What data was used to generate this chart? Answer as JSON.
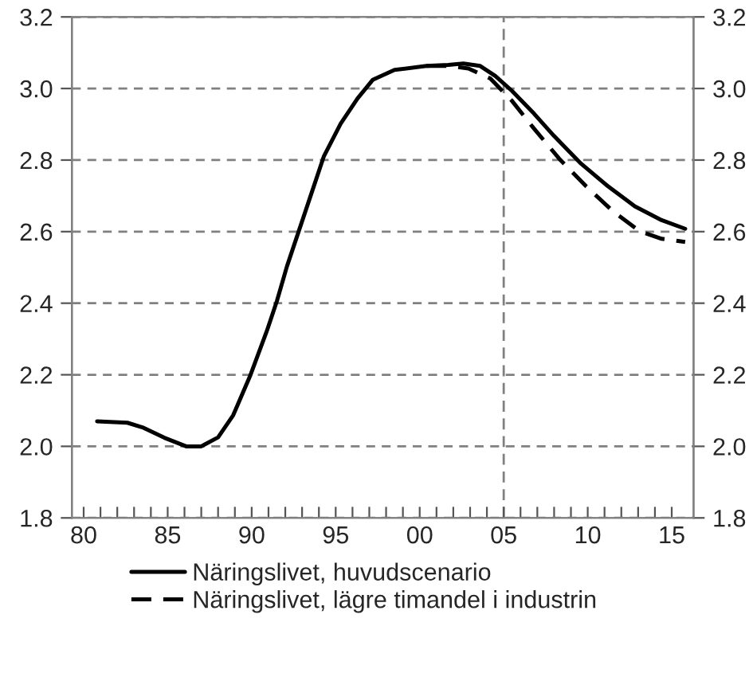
{
  "chart_data": {
    "type": "line",
    "series": [
      {
        "name": "Näringslivet, huvudscenario",
        "color": "#000000",
        "line_style": "solid",
        "x": [
          1980.8,
          1982.6,
          1983.5,
          1984.8,
          1986.1,
          1987.0,
          1988.0,
          1988.9,
          1989.9,
          1990.9,
          1991.5,
          1992.1,
          1992.8,
          1993.4,
          1994.3,
          1995.3,
          1996.3,
          1997.2,
          1998.5,
          2000.4,
          2001.7,
          2002.6,
          2003.6,
          2004.5,
          2005.5,
          2006.8,
          2008.0,
          2009.6,
          2011.2,
          2012.8,
          2014.4,
          2015.8
        ],
        "values": [
          2.07,
          2.066,
          2.053,
          2.024,
          2.0,
          2.0,
          2.025,
          2.087,
          2.196,
          2.322,
          2.406,
          2.503,
          2.601,
          2.685,
          2.811,
          2.902,
          2.972,
          3.024,
          3.052,
          3.063,
          3.066,
          3.07,
          3.063,
          3.035,
          2.993,
          2.93,
          2.867,
          2.79,
          2.727,
          2.671,
          2.632,
          2.608
        ]
      },
      {
        "name": "Näringslivet, lägre timandel i industrin",
        "color": "#000000",
        "line_style": "dashed",
        "x": [
          2000.4,
          2001.7,
          2002.9,
          2004.2,
          2005.5,
          2006.8,
          2008.3,
          2009.9,
          2011.5,
          2013.1,
          2014.4,
          2015.8
        ],
        "values": [
          3.063,
          3.063,
          3.056,
          3.028,
          2.965,
          2.888,
          2.804,
          2.727,
          2.657,
          2.601,
          2.58,
          2.571
        ]
      }
    ],
    "xlim": [
      1979.3,
      2016.3
    ],
    "xticks": [
      {
        "value": 1980,
        "label": "80"
      },
      {
        "value": 1981,
        "label": null
      },
      {
        "value": 1982,
        "label": null
      },
      {
        "value": 1983,
        "label": null
      },
      {
        "value": 1984,
        "label": null
      },
      {
        "value": 1985,
        "label": "85"
      },
      {
        "value": 1986,
        "label": null
      },
      {
        "value": 1987,
        "label": null
      },
      {
        "value": 1988,
        "label": null
      },
      {
        "value": 1989,
        "label": null
      },
      {
        "value": 1990,
        "label": "90"
      },
      {
        "value": 1991,
        "label": null
      },
      {
        "value": 1992,
        "label": null
      },
      {
        "value": 1993,
        "label": null
      },
      {
        "value": 1994,
        "label": null
      },
      {
        "value": 1995,
        "label": "95"
      },
      {
        "value": 1996,
        "label": null
      },
      {
        "value": 1997,
        "label": null
      },
      {
        "value": 1998,
        "label": null
      },
      {
        "value": 1999,
        "label": null
      },
      {
        "value": 2000,
        "label": "00"
      },
      {
        "value": 2001,
        "label": null
      },
      {
        "value": 2002,
        "label": null
      },
      {
        "value": 2003,
        "label": null
      },
      {
        "value": 2004,
        "label": null
      },
      {
        "value": 2005,
        "label": "05"
      },
      {
        "value": 2006,
        "label": null
      },
      {
        "value": 2007,
        "label": null
      },
      {
        "value": 2008,
        "label": null
      },
      {
        "value": 2009,
        "label": null
      },
      {
        "value": 2010,
        "label": "10"
      },
      {
        "value": 2011,
        "label": null
      },
      {
        "value": 2012,
        "label": null
      },
      {
        "value": 2013,
        "label": null
      },
      {
        "value": 2014,
        "label": null
      },
      {
        "value": 2015,
        "label": "15"
      }
    ],
    "ylim": [
      1.8,
      3.2
    ],
    "yticks": [
      {
        "value": 1.8,
        "label": "1.8"
      },
      {
        "value": 2.0,
        "label": "2.0"
      },
      {
        "value": 2.2,
        "label": "2.2"
      },
      {
        "value": 2.4,
        "label": "2.4"
      },
      {
        "value": 2.6,
        "label": "2.6"
      },
      {
        "value": 2.8,
        "label": "2.8"
      },
      {
        "value": 3.0,
        "label": "3.0"
      },
      {
        "value": 3.2,
        "label": "3.2"
      }
    ],
    "y2lim": [
      1.8,
      3.2
    ],
    "y2ticks": [
      {
        "value": 1.8,
        "label": "1.8"
      },
      {
        "value": 2.0,
        "label": "2.0"
      },
      {
        "value": 2.2,
        "label": "2.2"
      },
      {
        "value": 2.4,
        "label": "2.4"
      },
      {
        "value": 2.6,
        "label": "2.6"
      },
      {
        "value": 2.8,
        "label": "2.8"
      },
      {
        "value": 3.0,
        "label": "3.0"
      },
      {
        "value": 3.2,
        "label": "3.2"
      }
    ],
    "ref_lines": [
      {
        "axis": "x",
        "value": 2005,
        "color": "#808080",
        "line_style": "dashed"
      }
    ],
    "grid": "y",
    "legend": "bottom",
    "marker": "none"
  }
}
